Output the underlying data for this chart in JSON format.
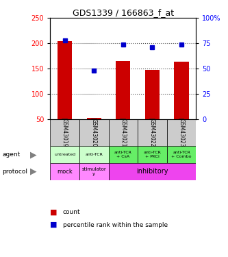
{
  "title": "GDS1339 / 166863_f_at",
  "samples": [
    "GSM43019",
    "GSM43020",
    "GSM43021",
    "GSM43022",
    "GSM43023"
  ],
  "counts": [
    204,
    52,
    165,
    147,
    163
  ],
  "count_base": 50,
  "percentile_ranks": [
    78,
    48,
    74,
    71,
    74
  ],
  "ylim_left": [
    50,
    250
  ],
  "ylim_right": [
    0,
    100
  ],
  "yticks_left": [
    50,
    100,
    150,
    200,
    250
  ],
  "yticks_right": [
    0,
    25,
    50,
    75,
    100
  ],
  "bar_color": "#cc0000",
  "dot_color": "#0000cc",
  "agent_labels": [
    "untreated",
    "anti-TCR",
    "anti-TCR\n+ CsA",
    "anti-TCR\n+ PKCi",
    "anti-TCR\n+ Combo"
  ],
  "agent_colors": [
    "#ccffcc",
    "#ccffcc",
    "#66ee66",
    "#66ee66",
    "#66ee66"
  ],
  "sample_bg_color": "#cccccc",
  "legend_count_color": "#cc0000",
  "legend_pct_color": "#0000cc",
  "grid_color": "#555555",
  "grid_yticks": [
    100,
    150,
    200
  ],
  "proto_mock_color": "#ff88ff",
  "proto_stim_color": "#ff88ff",
  "proto_inhib_color": "#ee44ee"
}
